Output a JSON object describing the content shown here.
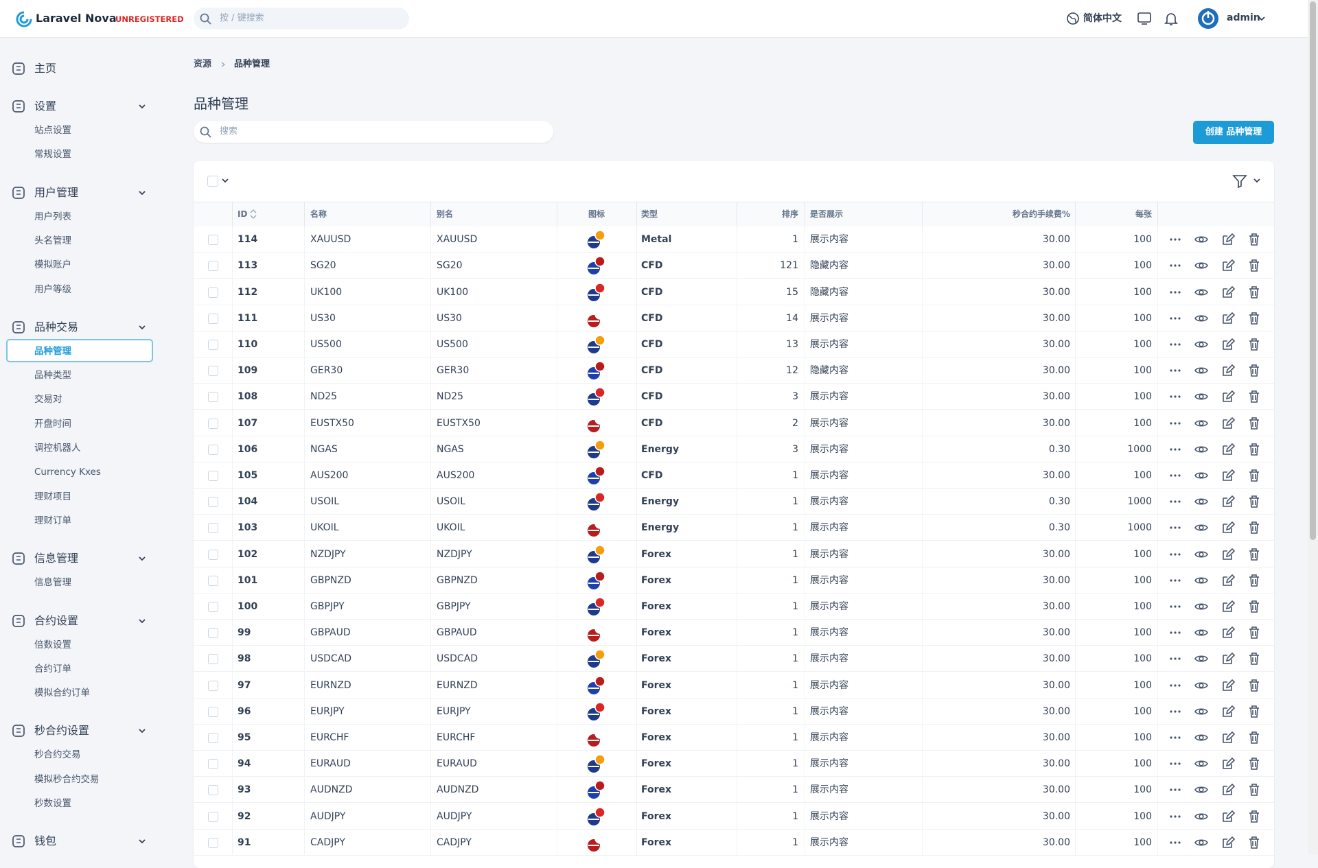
{
  "header": {
    "brand": "Laravel Nova",
    "badge": "UNREGISTERED",
    "search_placeholder": "按 / 键搜索",
    "language": "简体中文",
    "user": "admin"
  },
  "sidebar": [
    {
      "label": "主页",
      "items": []
    },
    {
      "label": "设置",
      "items": [
        "站点设置",
        "常规设置"
      ]
    },
    {
      "label": "用户管理",
      "items": [
        "用户列表",
        "头名管理",
        "模拟账户",
        "用户等级"
      ]
    },
    {
      "label": "品种交易",
      "items": [
        "品种管理",
        "品种类型",
        "交易对",
        "开盘时间",
        "调控机器人",
        "Currency Kxes",
        "理财项目",
        "理财订单"
      ]
    },
    {
      "label": "信息管理",
      "items": [
        "信息管理"
      ]
    },
    {
      "label": "合约设置",
      "items": [
        "倍数设置",
        "合约订单",
        "模拟合约订单"
      ]
    },
    {
      "label": "秒合约设置",
      "items": [
        "秒合约交易",
        "模拟秒合约交易",
        "秒数设置"
      ]
    },
    {
      "label": "钱包",
      "items": []
    }
  ],
  "breadcrumb": [
    "资源",
    "品种管理"
  ],
  "page": {
    "title": "品种管理",
    "search_placeholder": "搜索",
    "create_button": "创建 品种管理"
  },
  "table": {
    "columns": [
      "ID",
      "名称",
      "别名",
      "图标",
      "类型",
      "排序",
      "是否展示",
      "秒合约手续费%",
      "每张"
    ],
    "rows": [
      [
        "114",
        "XAUUSD",
        "XAUUSD",
        "Metal",
        "1",
        "展示内容",
        "30.00",
        "100"
      ],
      [
        "113",
        "SG20",
        "SG20",
        "CFD",
        "121",
        "隐藏内容",
        "30.00",
        "100"
      ],
      [
        "112",
        "UK100",
        "UK100",
        "CFD",
        "15",
        "隐藏内容",
        "30.00",
        "100"
      ],
      [
        "111",
        "US30",
        "US30",
        "CFD",
        "14",
        "展示内容",
        "30.00",
        "100"
      ],
      [
        "110",
        "US500",
        "US500",
        "CFD",
        "13",
        "展示内容",
        "30.00",
        "100"
      ],
      [
        "109",
        "GER30",
        "GER30",
        "CFD",
        "12",
        "隐藏内容",
        "30.00",
        "100"
      ],
      [
        "108",
        "ND25",
        "ND25",
        "CFD",
        "3",
        "展示内容",
        "30.00",
        "100"
      ],
      [
        "107",
        "EUSTX50",
        "EUSTX50",
        "CFD",
        "2",
        "展示内容",
        "30.00",
        "100"
      ],
      [
        "106",
        "NGAS",
        "NGAS",
        "Energy",
        "3",
        "展示内容",
        "0.30",
        "1000"
      ],
      [
        "105",
        "AUS200",
        "AUS200",
        "CFD",
        "1",
        "展示内容",
        "30.00",
        "100"
      ],
      [
        "104",
        "USOIL",
        "USOIL",
        "Energy",
        "1",
        "展示内容",
        "0.30",
        "1000"
      ],
      [
        "103",
        "UKOIL",
        "UKOIL",
        "Energy",
        "1",
        "展示内容",
        "0.30",
        "1000"
      ],
      [
        "102",
        "NZDJPY",
        "NZDJPY",
        "Forex",
        "1",
        "展示内容",
        "30.00",
        "100"
      ],
      [
        "101",
        "GBPNZD",
        "GBPNZD",
        "Forex",
        "1",
        "展示内容",
        "30.00",
        "100"
      ],
      [
        "100",
        "GBPJPY",
        "GBPJPY",
        "Forex",
        "1",
        "展示内容",
        "30.00",
        "100"
      ],
      [
        "99",
        "GBPAUD",
        "GBPAUD",
        "Forex",
        "1",
        "展示内容",
        "30.00",
        "100"
      ],
      [
        "98",
        "USDCAD",
        "USDCAD",
        "Forex",
        "1",
        "展示内容",
        "30.00",
        "100"
      ],
      [
        "97",
        "EURNZD",
        "EURNZD",
        "Forex",
        "1",
        "展示内容",
        "30.00",
        "100"
      ],
      [
        "96",
        "EURJPY",
        "EURJPY",
        "Forex",
        "1",
        "展示内容",
        "30.00",
        "100"
      ],
      [
        "95",
        "EURCHF",
        "EURCHF",
        "Forex",
        "1",
        "展示内容",
        "30.00",
        "100"
      ],
      [
        "94",
        "EURAUD",
        "EURAUD",
        "Forex",
        "1",
        "展示内容",
        "30.00",
        "100"
      ],
      [
        "93",
        "AUDNZD",
        "AUDNZD",
        "Forex",
        "1",
        "展示内容",
        "30.00",
        "100"
      ],
      [
        "92",
        "AUDJPY",
        "AUDJPY",
        "Forex",
        "1",
        "展示内容",
        "30.00",
        "100"
      ],
      [
        "91",
        "CADJPY",
        "CADJPY",
        "Forex",
        "1",
        "展示内容",
        "30.00",
        "100"
      ]
    ]
  }
}
